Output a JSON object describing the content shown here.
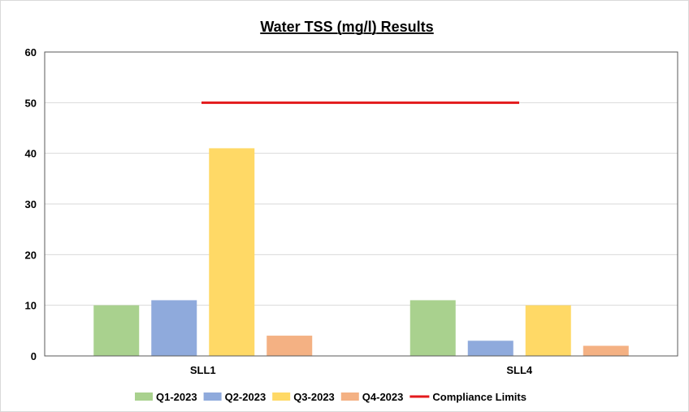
{
  "chart_data": {
    "type": "bar",
    "title": "Water TSS (mg/l) Results",
    "categories": [
      "SLL1",
      "SLL4"
    ],
    "series": [
      {
        "name": "Q1-2023",
        "color": "#a9d18e",
        "values": [
          10,
          11
        ]
      },
      {
        "name": "Q2-2023",
        "color": "#8faadc",
        "values": [
          11,
          3
        ]
      },
      {
        "name": "Q3-2023",
        "color": "#ffd966",
        "values": [
          41,
          10
        ]
      },
      {
        "name": "Q4-2023",
        "color": "#f4b183",
        "values": [
          4,
          2
        ]
      }
    ],
    "compliance": {
      "name": "Compliance Limits",
      "value": 50,
      "color": "#e31a1c"
    },
    "ylim": [
      0,
      60
    ],
    "yticks": [
      0,
      10,
      20,
      30,
      40,
      50,
      60
    ],
    "grid": true,
    "legend_position": "bottom"
  }
}
